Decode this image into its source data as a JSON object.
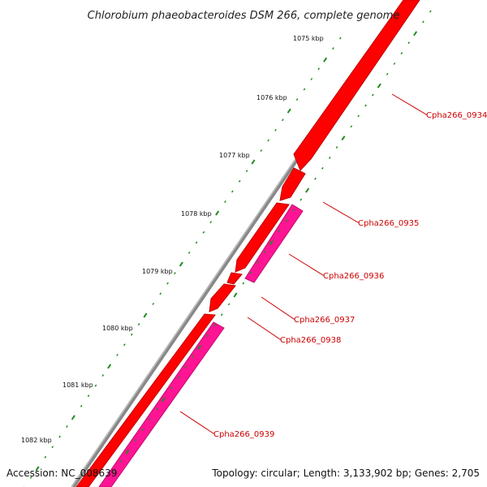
{
  "title": "Chlorobium phaeobacteroides DSM 266, complete genome",
  "footer": {
    "accession": "Accession: NC_008639",
    "summary": "Topology: circular; Length: 3,133,902 bp; Genes: 2,705"
  },
  "ruler": {
    "labels": [
      "1075 kbp",
      "1076 kbp",
      "1077 kbp",
      "1078 kbp",
      "1079 kbp",
      "1080 kbp",
      "1081 kbp",
      "1082 kbp"
    ]
  },
  "genes": [
    {
      "id": "Cpha266_0934",
      "strand": "forward",
      "color": "#ff0000"
    },
    {
      "id": "Cpha266_0935",
      "strand": "forward",
      "color": "#ff0000"
    },
    {
      "id": "Cpha266_0936",
      "strand": "reverse",
      "color": "#ff1493"
    },
    {
      "id": "Cpha266_0937",
      "strand": "forward",
      "color": "#ff0000"
    },
    {
      "id": "Cpha266_0938",
      "strand": "forward",
      "color": "#ff0000"
    },
    {
      "id": "Cpha266_0939",
      "strand": "reverse",
      "color": "#ff1493"
    }
  ],
  "colors": {
    "backbone": "#808080",
    "forward_gene": "#ff0000",
    "reverse_gene": "#ff1493",
    "tick": "#228b22",
    "gene_label": "#cc0000"
  }
}
